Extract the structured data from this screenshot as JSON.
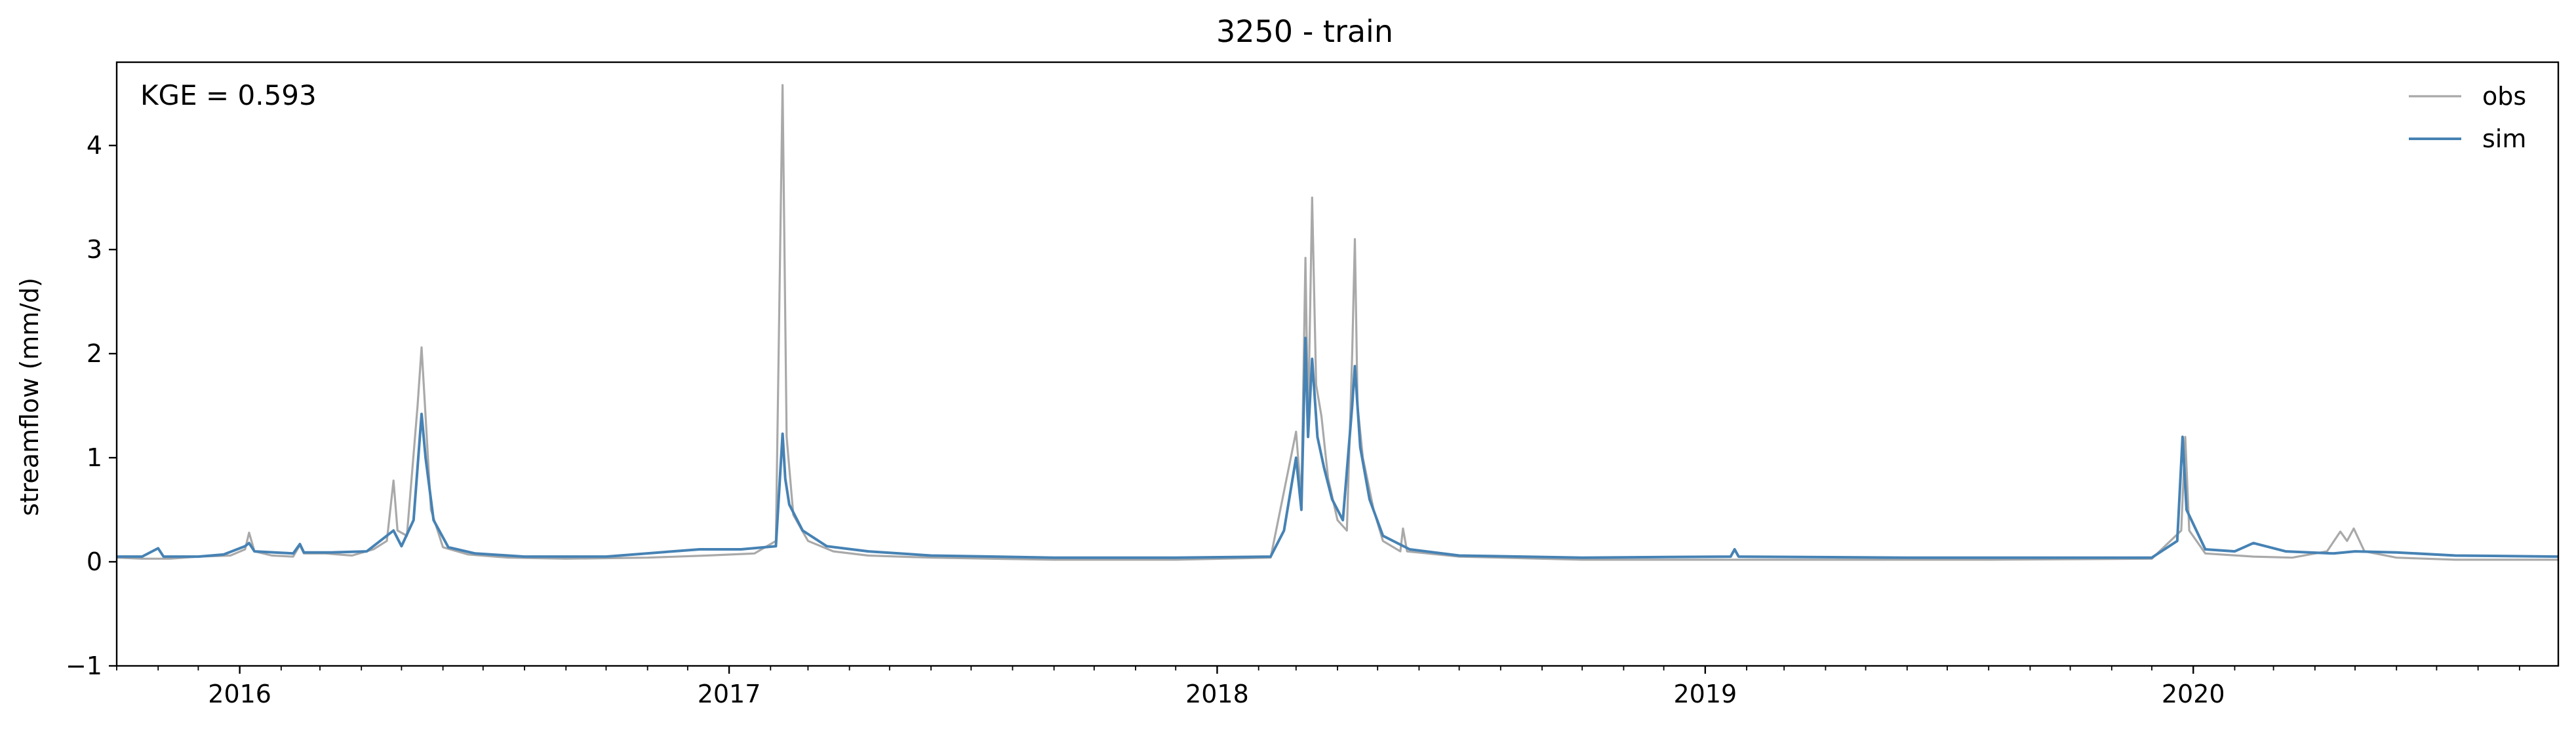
{
  "chart_data": {
    "type": "line",
    "title": "3250 - train",
    "xlabel": "",
    "ylabel": "streamflow (mm/d)",
    "xlim": [
      "2015-10-01",
      "2020-09-30"
    ],
    "ylim": [
      -1,
      4.8
    ],
    "yticks": [
      -1,
      0,
      1,
      2,
      3,
      4
    ],
    "xticks": [
      "2016",
      "2017",
      "2018",
      "2019",
      "2020"
    ],
    "grid": false,
    "legend_position": "top-right",
    "annotation": "KGE = 0.593",
    "series": [
      {
        "name": "obs",
        "color": "#a9a9a9",
        "points": [
          [
            "2015-10-01",
            0.04
          ],
          [
            "2015-10-20",
            0.03
          ],
          [
            "2015-11-10",
            0.03
          ],
          [
            "2015-12-01",
            0.05
          ],
          [
            "2015-12-25",
            0.06
          ],
          [
            "2016-01-05",
            0.12
          ],
          [
            "2016-01-08",
            0.28
          ],
          [
            "2016-01-12",
            0.1
          ],
          [
            "2016-01-25",
            0.06
          ],
          [
            "2016-02-10",
            0.05
          ],
          [
            "2016-02-15",
            0.16
          ],
          [
            "2016-02-18",
            0.08
          ],
          [
            "2016-03-05",
            0.08
          ],
          [
            "2016-03-25",
            0.06
          ],
          [
            "2016-04-10",
            0.12
          ],
          [
            "2016-04-20",
            0.2
          ],
          [
            "2016-04-25",
            0.78
          ],
          [
            "2016-04-28",
            0.3
          ],
          [
            "2016-05-05",
            0.25
          ],
          [
            "2016-05-13",
            1.5
          ],
          [
            "2016-05-16",
            2.06
          ],
          [
            "2016-05-19",
            1.4
          ],
          [
            "2016-05-23",
            0.5
          ],
          [
            "2016-06-01",
            0.14
          ],
          [
            "2016-06-20",
            0.07
          ],
          [
            "2016-07-20",
            0.04
          ],
          [
            "2016-09-01",
            0.03
          ],
          [
            "2016-11-01",
            0.04
          ],
          [
            "2016-12-15",
            0.06
          ],
          [
            "2017-01-20",
            0.08
          ],
          [
            "2017-02-05",
            0.2
          ],
          [
            "2017-02-10",
            4.58
          ],
          [
            "2017-02-13",
            1.2
          ],
          [
            "2017-02-18",
            0.45
          ],
          [
            "2017-03-01",
            0.2
          ],
          [
            "2017-03-20",
            0.1
          ],
          [
            "2017-04-15",
            0.06
          ],
          [
            "2017-06-01",
            0.04
          ],
          [
            "2017-09-01",
            0.02
          ],
          [
            "2017-12-01",
            0.02
          ],
          [
            "2018-02-10",
            0.04
          ],
          [
            "2018-03-01",
            1.25
          ],
          [
            "2018-03-05",
            0.6
          ],
          [
            "2018-03-08",
            2.92
          ],
          [
            "2018-03-10",
            1.3
          ],
          [
            "2018-03-13",
            3.5
          ],
          [
            "2018-03-16",
            1.7
          ],
          [
            "2018-03-20",
            1.4
          ],
          [
            "2018-03-25",
            0.8
          ],
          [
            "2018-04-01",
            0.4
          ],
          [
            "2018-04-08",
            0.3
          ],
          [
            "2018-04-12",
            2.0
          ],
          [
            "2018-04-14",
            3.1
          ],
          [
            "2018-04-16",
            1.5
          ],
          [
            "2018-04-20",
            1.0
          ],
          [
            "2018-04-28",
            0.5
          ],
          [
            "2018-05-05",
            0.2
          ],
          [
            "2018-05-18",
            0.1
          ],
          [
            "2018-05-20",
            0.32
          ],
          [
            "2018-05-23",
            0.1
          ],
          [
            "2018-07-01",
            0.05
          ],
          [
            "2018-10-01",
            0.02
          ],
          [
            "2019-03-01",
            0.02
          ],
          [
            "2019-08-01",
            0.02
          ],
          [
            "2019-12-01",
            0.03
          ],
          [
            "2019-12-23",
            0.3
          ],
          [
            "2019-12-26",
            1.2
          ],
          [
            "2019-12-29",
            0.3
          ],
          [
            "2020-01-10",
            0.08
          ],
          [
            "2020-02-15",
            0.05
          ],
          [
            "2020-03-15",
            0.04
          ],
          [
            "2020-04-10",
            0.1
          ],
          [
            "2020-04-20",
            0.29
          ],
          [
            "2020-04-25",
            0.2
          ],
          [
            "2020-04-30",
            0.32
          ],
          [
            "2020-05-08",
            0.1
          ],
          [
            "2020-06-01",
            0.04
          ],
          [
            "2020-07-15",
            0.02
          ],
          [
            "2020-09-30",
            0.02
          ]
        ]
      },
      {
        "name": "sim",
        "color": "#4682b4",
        "points": [
          [
            "2015-10-01",
            0.05
          ],
          [
            "2015-10-20",
            0.05
          ],
          [
            "2015-11-01",
            0.13
          ],
          [
            "2015-11-05",
            0.05
          ],
          [
            "2015-12-01",
            0.05
          ],
          [
            "2015-12-20",
            0.07
          ],
          [
            "2016-01-05",
            0.15
          ],
          [
            "2016-01-08",
            0.18
          ],
          [
            "2016-01-12",
            0.1
          ],
          [
            "2016-02-10",
            0.08
          ],
          [
            "2016-02-15",
            0.17
          ],
          [
            "2016-02-18",
            0.09
          ],
          [
            "2016-03-10",
            0.09
          ],
          [
            "2016-04-05",
            0.1
          ],
          [
            "2016-04-15",
            0.2
          ],
          [
            "2016-04-25",
            0.3
          ],
          [
            "2016-05-01",
            0.15
          ],
          [
            "2016-05-10",
            0.4
          ],
          [
            "2016-05-16",
            1.42
          ],
          [
            "2016-05-19",
            1.0
          ],
          [
            "2016-05-25",
            0.4
          ],
          [
            "2016-06-05",
            0.14
          ],
          [
            "2016-06-25",
            0.08
          ],
          [
            "2016-08-01",
            0.05
          ],
          [
            "2016-10-01",
            0.05
          ],
          [
            "2016-11-20",
            0.1
          ],
          [
            "2016-12-10",
            0.12
          ],
          [
            "2017-01-10",
            0.12
          ],
          [
            "2017-02-05",
            0.15
          ],
          [
            "2017-02-10",
            1.23
          ],
          [
            "2017-02-12",
            0.8
          ],
          [
            "2017-02-15",
            0.55
          ],
          [
            "2017-02-25",
            0.3
          ],
          [
            "2017-03-15",
            0.15
          ],
          [
            "2017-04-15",
            0.1
          ],
          [
            "2017-06-01",
            0.06
          ],
          [
            "2017-09-01",
            0.04
          ],
          [
            "2017-12-01",
            0.04
          ],
          [
            "2018-02-10",
            0.05
          ],
          [
            "2018-02-20",
            0.3
          ],
          [
            "2018-03-01",
            1.0
          ],
          [
            "2018-03-05",
            0.5
          ],
          [
            "2018-03-08",
            2.15
          ],
          [
            "2018-03-10",
            1.2
          ],
          [
            "2018-03-13",
            1.95
          ],
          [
            "2018-03-17",
            1.2
          ],
          [
            "2018-03-22",
            0.9
          ],
          [
            "2018-03-28",
            0.6
          ],
          [
            "2018-04-05",
            0.4
          ],
          [
            "2018-04-12",
            1.5
          ],
          [
            "2018-04-14",
            1.88
          ],
          [
            "2018-04-18",
            1.1
          ],
          [
            "2018-04-25",
            0.6
          ],
          [
            "2018-05-05",
            0.25
          ],
          [
            "2018-05-25",
            0.12
          ],
          [
            "2018-07-01",
            0.06
          ],
          [
            "2018-10-01",
            0.04
          ],
          [
            "2019-01-20",
            0.05
          ],
          [
            "2019-01-23",
            0.12
          ],
          [
            "2019-01-26",
            0.05
          ],
          [
            "2019-06-01",
            0.04
          ],
          [
            "2019-12-01",
            0.04
          ],
          [
            "2019-12-20",
            0.2
          ],
          [
            "2019-12-24",
            1.2
          ],
          [
            "2019-12-27",
            0.5
          ],
          [
            "2020-01-10",
            0.12
          ],
          [
            "2020-02-01",
            0.1
          ],
          [
            "2020-02-15",
            0.18
          ],
          [
            "2020-03-10",
            0.1
          ],
          [
            "2020-04-15",
            0.08
          ],
          [
            "2020-05-01",
            0.1
          ],
          [
            "2020-06-01",
            0.09
          ],
          [
            "2020-07-15",
            0.06
          ],
          [
            "2020-09-30",
            0.05
          ]
        ]
      }
    ]
  }
}
